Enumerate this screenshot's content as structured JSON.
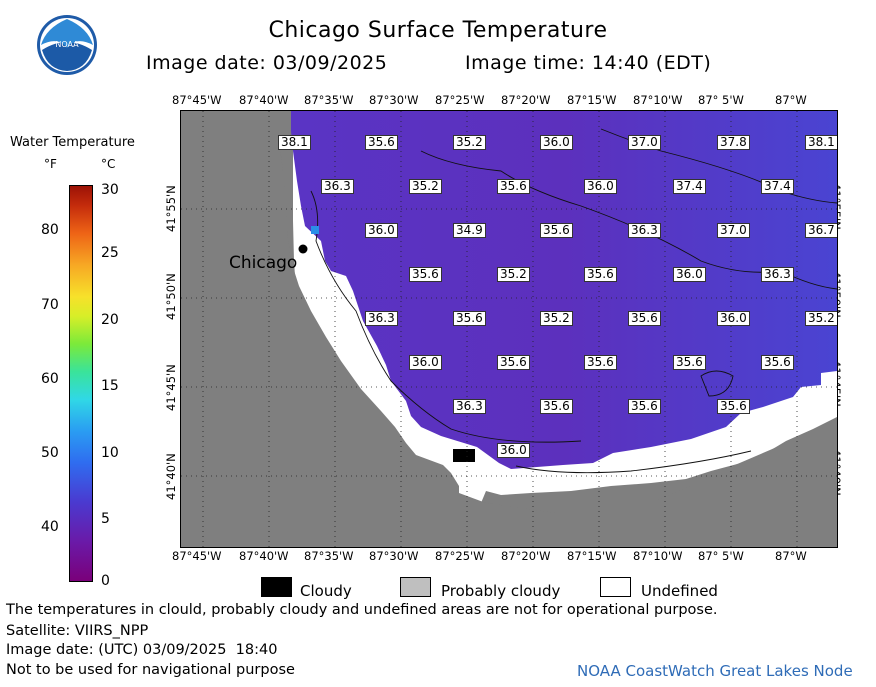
{
  "header": {
    "title": "Chicago Surface Temperature",
    "image_date": "Image date: 03/09/2025",
    "image_time": "Image time: 14:40 (EDT)"
  },
  "legend": {
    "title": "Water Temperature",
    "unit_f": "°F",
    "unit_c": "°C",
    "f_ticks": [
      "80",
      "70",
      "60",
      "50",
      "40"
    ],
    "c_ticks": [
      "30",
      "25",
      "20",
      "15",
      "10",
      "5",
      "0"
    ]
  },
  "map": {
    "lon_labels": [
      "87°45'W",
      "87°40'W",
      "87°35'W",
      "87°30'W",
      "87°25'W",
      "87°20'W",
      "87°15'W",
      "87°10'W",
      "87° 5'W",
      "87°W"
    ],
    "lat_labels": [
      "41°55'N",
      "41°50'N",
      "41°45'N",
      "41°40'N"
    ],
    "city_label": "Chicago",
    "temperatures": [
      [
        "38.1",
        "35.6",
        "35.2",
        "36.0",
        "37.0",
        "37.8",
        "38.1"
      ],
      [
        "36.3",
        "35.2",
        "35.6",
        "36.0",
        "37.4",
        "37.4"
      ],
      [
        "36.0",
        "34.9",
        "35.6",
        "36.3",
        "37.0",
        "36.7"
      ],
      [
        "35.6",
        "35.2",
        "35.6",
        "36.0",
        "36.3"
      ],
      [
        "36.3",
        "35.6",
        "35.2",
        "35.6",
        "36.0",
        "35.2"
      ],
      [
        "36.0",
        "35.6",
        "35.6",
        "35.6",
        "35.6"
      ],
      [
        "36.3",
        "35.6",
        "35.6",
        "35.6"
      ],
      [
        "36.0"
      ]
    ],
    "colors": {
      "water": "#5b32c2",
      "land": "#7f7f7f",
      "undefined": "#ffffff",
      "cloudy": "#000000",
      "probably_cloudy": "#bfbfbf"
    }
  },
  "key": {
    "cloudy": "Cloudy",
    "probably_cloudy": "Probably cloudy",
    "undefined": "Undefined"
  },
  "footer": {
    "disclaimer": "The temperatures in clould, probably cloudy and undefined areas are not for operational purpose.",
    "satellite": "Satellite: VIIRS_NPP",
    "utc_date": "Image date: (UTC) 03/09/2025  18:40",
    "navigation": "Not to be used for navigational purpose",
    "credit": "NOAA CoastWatch Great Lakes Node"
  }
}
